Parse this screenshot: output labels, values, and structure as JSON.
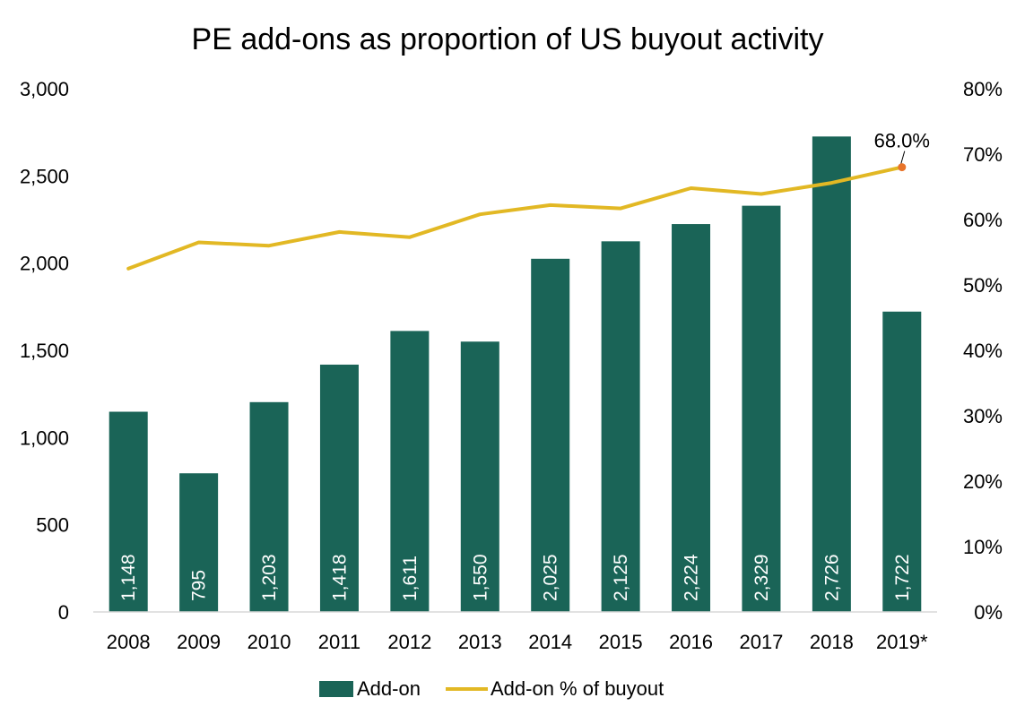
{
  "chart_data": {
    "type": "bar",
    "title": "PE add-ons as proportion of US buyout activity",
    "categories": [
      "2008",
      "2009",
      "2010",
      "2011",
      "2012",
      "2013",
      "2014",
      "2015",
      "2016",
      "2017",
      "2018",
      "2019*"
    ],
    "series": [
      {
        "name": "Add-on",
        "type": "bar",
        "axis": "left",
        "color": "#1a6457",
        "values": [
          1148,
          795,
          1203,
          1418,
          1611,
          1550,
          2025,
          2125,
          2224,
          2329,
          2726,
          1722
        ],
        "data_labels": [
          "1,148",
          "795",
          "1,203",
          "1,418",
          "1,611",
          "1,550",
          "2,025",
          "2,125",
          "2,224",
          "2,329",
          "2,726",
          "1,722"
        ]
      },
      {
        "name": "Add-on % of buyout",
        "type": "line",
        "axis": "right",
        "color": "#e2b824",
        "values": [
          52.5,
          56.5,
          56.0,
          58.1,
          57.3,
          60.8,
          62.2,
          61.7,
          64.8,
          63.9,
          65.6,
          68.0
        ]
      }
    ],
    "annotation": {
      "text": "68.0%",
      "category": "2019*",
      "marker_color": "#e8742a"
    },
    "y_left": {
      "range": [
        0,
        3000
      ],
      "ticks": [
        0,
        500,
        1000,
        1500,
        2000,
        2500,
        3000
      ],
      "tick_labels": [
        "0",
        "500",
        "1,000",
        "1,500",
        "2,000",
        "2,500",
        "3,000"
      ]
    },
    "y_right": {
      "range": [
        0,
        80
      ],
      "ticks": [
        0,
        10,
        20,
        30,
        40,
        50,
        60,
        70,
        80
      ],
      "tick_labels": [
        "0%",
        "10%",
        "20%",
        "30%",
        "40%",
        "50%",
        "60%",
        "70%",
        "80%"
      ]
    },
    "grid": false,
    "legend_position": "bottom"
  }
}
